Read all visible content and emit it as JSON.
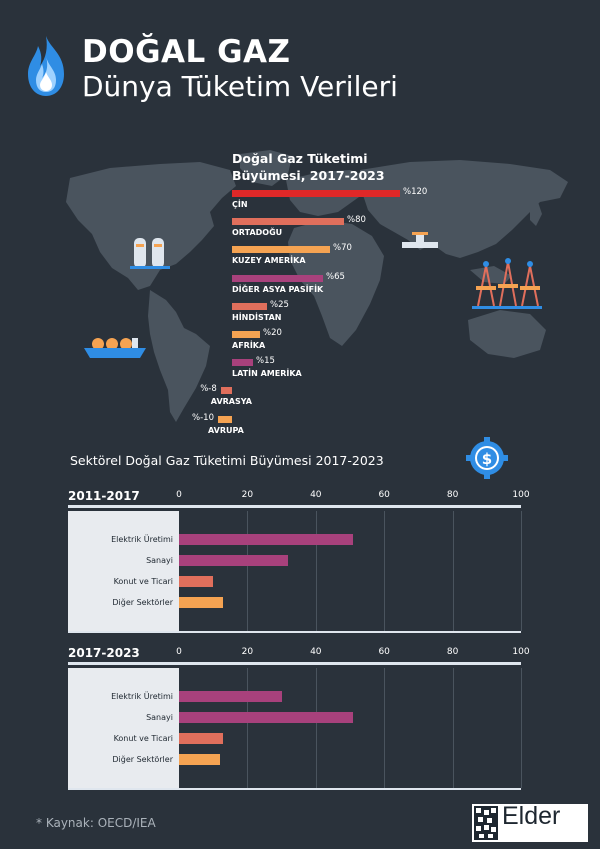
{
  "header": {
    "title": "DOĞAL GAZ",
    "subtitle": "Dünya Tüketim Verileri"
  },
  "colors": {
    "background": "#2a323b",
    "map": "#4a545e",
    "red": "#e02828",
    "salmon": "#e06f5c",
    "orange": "#f5a352",
    "purple": "#a8417c",
    "panel": "#e8ebef"
  },
  "icons": [
    "flame-icon",
    "gas-tanks-icon",
    "pipeline-valve-icon",
    "oil-rig-icon",
    "lng-ship-icon",
    "dollar-gear-icon"
  ],
  "chart_data": [
    {
      "type": "bar",
      "title": "Doğal Gaz Tüketimi Büyümesi, 2017-2023",
      "categories": [
        "ÇİN",
        "ORTADOĞU",
        "KUZEY AMERİKA",
        "DİĞER ASYA PASİFİK",
        "HİNDİSTAN",
        "AFRİKA",
        "LATİN AMERİKA",
        "AVRASYA",
        "AVRUPA"
      ],
      "values": [
        120,
        80,
        70,
        65,
        25,
        20,
        15,
        -8,
        -10
      ],
      "value_labels": [
        "%120",
        "%80",
        "%70",
        "%65",
        "%25",
        "%20",
        "%15",
        "%-8",
        "%-10"
      ],
      "bar_colors": [
        "#e02828",
        "#e06f5c",
        "#f5a352",
        "#a8417c",
        "#e06f5c",
        "#f5a352",
        "#a8417c",
        "#e06f5c",
        "#f5a352"
      ],
      "xlim": [
        -10,
        120
      ],
      "grid": false
    },
    {
      "type": "bar",
      "title": "Sektörel Doğal Gaz Tüketimi Büyümesi 2017-2023",
      "panel_label": "2011-2017",
      "categories": [
        "Elektrik Üretimi",
        "Sanayi",
        "Konut ve Ticari",
        "Diğer Sektörler"
      ],
      "values": [
        51,
        32,
        10,
        13
      ],
      "bar_colors": [
        "#a8417c",
        "#a8417c",
        "#e06f5c",
        "#f5a352"
      ],
      "xlim": [
        0,
        100
      ],
      "xticks": [
        0,
        20,
        40,
        60,
        80,
        100
      ],
      "grid": true
    },
    {
      "type": "bar",
      "panel_label": "2017-2023",
      "categories": [
        "Elektrik Üretimi",
        "Sanayi",
        "Konut ve Ticari",
        "Diğer Sektörler"
      ],
      "values": [
        30,
        51,
        13,
        12
      ],
      "bar_colors": [
        "#a8417c",
        "#a8417c",
        "#e06f5c",
        "#f5a352"
      ],
      "xlim": [
        0,
        100
      ],
      "xticks": [
        0,
        20,
        40,
        60,
        80,
        100
      ],
      "grid": true
    }
  ],
  "footer": {
    "source": "* Kaynak: OECD/IEA",
    "logo_text": "Elder"
  }
}
